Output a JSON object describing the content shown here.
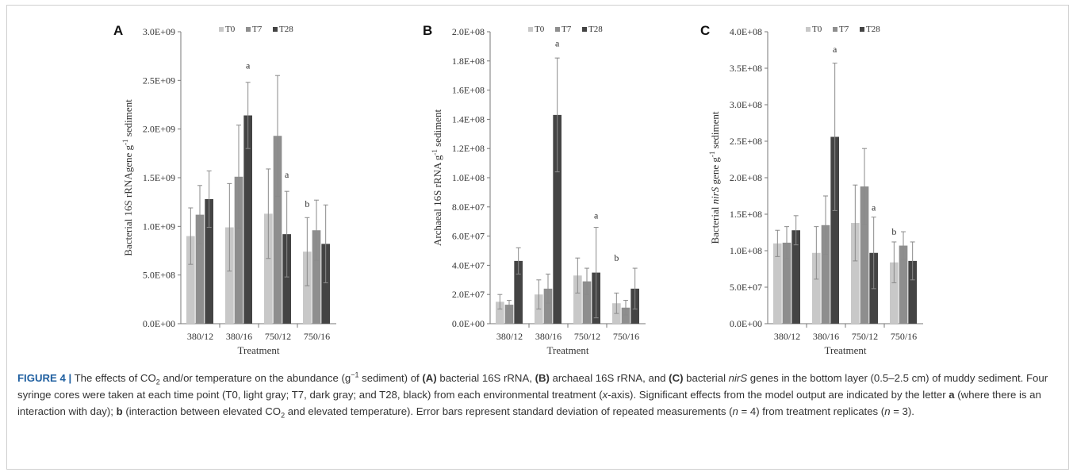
{
  "colors": {
    "T0": "#c8c8c8",
    "T7": "#8e8e8e",
    "T28": "#444444",
    "error_bar": "#8a8a8a",
    "axis": "#777777",
    "caption_label": "#1f5fa0"
  },
  "chart_data": [
    {
      "panel": "A",
      "type": "bar",
      "ylabel_parts": [
        "Bacterial 16S rRNAgene g",
        "-1",
        " sediment"
      ],
      "xlabel": "Treatment",
      "categories": [
        "380/12",
        "380/16",
        "750/12",
        "750/16"
      ],
      "ylim": [
        0,
        3000000000
      ],
      "yticks": [
        0,
        500000000,
        1000000000,
        1500000000,
        2000000000,
        2500000000,
        3000000000
      ],
      "ytick_labels": [
        "0.0E+00",
        "5.0E+08",
        "1.0E+09",
        "1.5E+09",
        "2.0E+09",
        "2.5E+09",
        "3.0E+09"
      ],
      "legend": "top-center",
      "series": [
        {
          "name": "T0",
          "values": [
            900000000,
            990000000,
            1130000000,
            740000000
          ],
          "errors": [
            290000000,
            450000000,
            460000000,
            350000000
          ]
        },
        {
          "name": "T7",
          "values": [
            1120000000,
            1510000000,
            1930000000,
            960000000
          ],
          "errors": [
            300000000,
            530000000,
            620000000,
            310000000
          ]
        },
        {
          "name": "T28",
          "values": [
            1280000000,
            2140000000,
            920000000,
            820000000
          ],
          "errors": [
            290000000,
            340000000,
            440000000,
            400000000
          ]
        }
      ],
      "annotations": [
        {
          "text": "a",
          "category": 1,
          "series": 2,
          "value": 2620000000
        },
        {
          "text": "a",
          "category": 2,
          "series": 2,
          "value": 1500000000
        },
        {
          "text": "b",
          "category": 3,
          "series": 0,
          "value": 1200000000
        }
      ]
    },
    {
      "panel": "B",
      "type": "bar",
      "ylabel_parts": [
        "Archaeal 16S rRNA g",
        "-1",
        " sediment"
      ],
      "xlabel": "Treatment",
      "categories": [
        "380/12",
        "380/16",
        "750/12",
        "750/16"
      ],
      "ylim": [
        0,
        200000000
      ],
      "yticks": [
        0,
        20000000,
        40000000,
        60000000,
        80000000,
        100000000,
        120000000,
        140000000,
        160000000,
        180000000,
        200000000
      ],
      "ytick_labels": [
        "0.0E+00",
        "2.0E+07",
        "4.0E+07",
        "6.0E+07",
        "8.0E+07",
        "1.0E+08",
        "1.2E+08",
        "1.4E+08",
        "1.6E+08",
        "1.8E+08",
        "2.0E+08"
      ],
      "legend": "top-center",
      "series": [
        {
          "name": "T0",
          "values": [
            15000000,
            20000000,
            33000000,
            14000000
          ],
          "errors": [
            5000000,
            10000000,
            12000000,
            7000000
          ]
        },
        {
          "name": "T7",
          "values": [
            13000000,
            24000000,
            29000000,
            11000000
          ],
          "errors": [
            3000000,
            10000000,
            9000000,
            5000000
          ]
        },
        {
          "name": "T28",
          "values": [
            43000000,
            143000000,
            35000000,
            24000000
          ],
          "errors": [
            9000000,
            39000000,
            31000000,
            14000000
          ]
        }
      ],
      "annotations": [
        {
          "text": "a",
          "category": 1,
          "series": 2,
          "value": 190000000
        },
        {
          "text": "a",
          "category": 2,
          "series": 2,
          "value": 72000000
        },
        {
          "text": "b",
          "category": 3,
          "series": 0,
          "value": 43000000
        }
      ]
    },
    {
      "panel": "C",
      "type": "bar",
      "ylabel_parts": [
        "Bacterial ",
        "nirS",
        " gene  g",
        "-1",
        " sediment"
      ],
      "xlabel": "Treatment",
      "categories": [
        "380/12",
        "380/16",
        "750/12",
        "750/16"
      ],
      "ylim": [
        0,
        400000000
      ],
      "yticks": [
        0,
        50000000,
        100000000,
        150000000,
        200000000,
        250000000,
        300000000,
        350000000,
        400000000
      ],
      "ytick_labels": [
        "0.0E+00",
        "5.0E+07",
        "1.0E+08",
        "1.5E+08",
        "2.0E+08",
        "2.5E+08",
        "3.0E+08",
        "3.5E+08",
        "4.0E+08"
      ],
      "legend": "top-center",
      "series": [
        {
          "name": "T0",
          "values": [
            110000000,
            97000000,
            138000000,
            84000000
          ],
          "errors": [
            18000000,
            36000000,
            52000000,
            28000000
          ]
        },
        {
          "name": "T7",
          "values": [
            111000000,
            135000000,
            188000000,
            107000000
          ],
          "errors": [
            22000000,
            40000000,
            52000000,
            19000000
          ]
        },
        {
          "name": "T28",
          "values": [
            128000000,
            256000000,
            97000000,
            86000000
          ],
          "errors": [
            20000000,
            101000000,
            49000000,
            26000000
          ]
        }
      ],
      "annotations": [
        {
          "text": "a",
          "category": 1,
          "series": 2,
          "value": 372000000
        },
        {
          "text": "a",
          "category": 2,
          "series": 2,
          "value": 155000000
        },
        {
          "text": "b",
          "category": 3,
          "series": 0,
          "value": 122000000
        }
      ]
    }
  ],
  "caption": {
    "label": "FIGURE 4 |",
    "parts": [
      {
        "t": " The effects of CO",
        "s": ""
      },
      {
        "t": "2",
        "s": "sub"
      },
      {
        "t": " and/or temperature on the abundance (g",
        "s": ""
      },
      {
        "t": "−1",
        "s": "sup"
      },
      {
        "t": " sediment) of ",
        "s": ""
      },
      {
        "t": "(A)",
        "s": "b"
      },
      {
        "t": " bacterial 16S rRNA, ",
        "s": ""
      },
      {
        "t": "(B)",
        "s": "b"
      },
      {
        "t": " archaeal 16S rRNA, and ",
        "s": ""
      },
      {
        "t": "(C)",
        "s": "b"
      },
      {
        "t": " bacterial ",
        "s": ""
      },
      {
        "t": "nirS",
        "s": "i"
      },
      {
        "t": " genes in the bottom layer (0.5–2.5 cm) of muddy sediment. Four syringe cores were taken at each time point (T0, light gray; T7, dark gray; and T28, black) from each environmental treatment (",
        "s": ""
      },
      {
        "t": "x",
        "s": "i"
      },
      {
        "t": "-axis). Significant effects from the model output are indicated by the letter ",
        "s": ""
      },
      {
        "t": "a",
        "s": "b"
      },
      {
        "t": " (where there is an interaction with day); ",
        "s": ""
      },
      {
        "t": "b",
        "s": "b"
      },
      {
        "t": " (interaction between elevated CO",
        "s": ""
      },
      {
        "t": "2",
        "s": "sub"
      },
      {
        "t": " and elevated temperature). Error bars represent standard deviation of repeated measurements (",
        "s": ""
      },
      {
        "t": "n",
        "s": "i"
      },
      {
        "t": " = 4) from treatment replicates (",
        "s": ""
      },
      {
        "t": "n",
        "s": "i"
      },
      {
        "t": " = 3).",
        "s": ""
      }
    ]
  }
}
